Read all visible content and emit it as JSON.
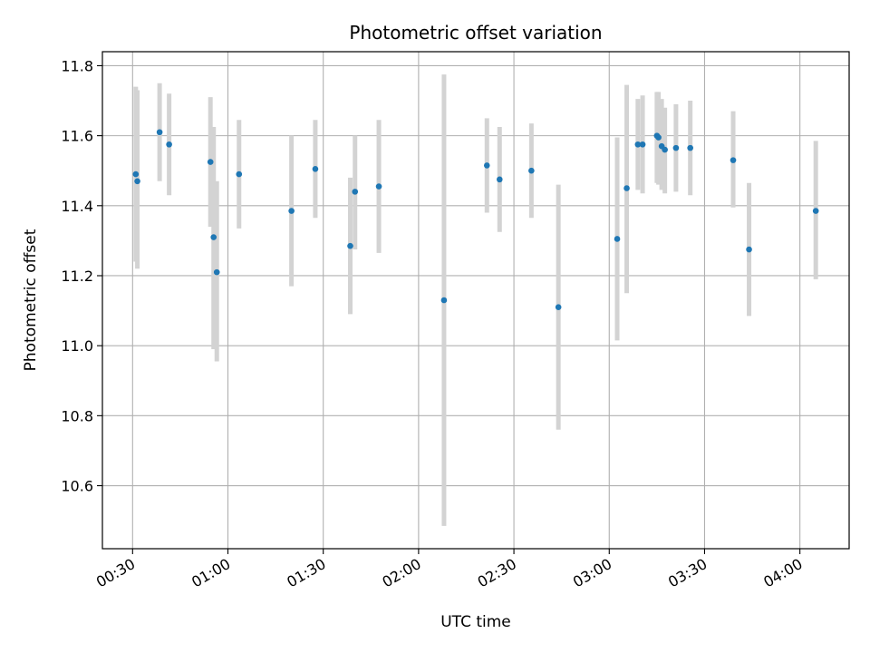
{
  "chart_data": {
    "type": "scatter",
    "title": "Photometric offset variation",
    "xlabel": "UTC time",
    "ylabel": "Photometric offset",
    "x_unit": "UTC time (HH:MM)",
    "xlim": [
      "00:20:30",
      "04:15:30"
    ],
    "ylim": [
      10.42,
      11.84
    ],
    "x_ticks": [
      "00:30",
      "01:00",
      "01:30",
      "02:00",
      "02:30",
      "03:00",
      "03:30",
      "04:00"
    ],
    "y_ticks": [
      10.6,
      10.8,
      11.0,
      11.2,
      11.4,
      11.6,
      11.8
    ],
    "y_tick_labels": [
      "10.6",
      "10.8",
      "11.0",
      "11.2",
      "11.4",
      "11.6",
      "11.8"
    ],
    "grid": true,
    "point_color": "#1f77b4",
    "errorbar_color": "#d3d3d3",
    "points": [
      {
        "x": "00:31:00",
        "y": 11.49,
        "ymin": 11.24,
        "ymax": 11.74
      },
      {
        "x": "00:31:30",
        "y": 11.47,
        "ymin": 11.22,
        "ymax": 11.73
      },
      {
        "x": "00:38:30",
        "y": 11.61,
        "ymin": 11.47,
        "ymax": 11.75
      },
      {
        "x": "00:41:30",
        "y": 11.575,
        "ymin": 11.43,
        "ymax": 11.72
      },
      {
        "x": "00:54:30",
        "y": 11.525,
        "ymin": 11.34,
        "ymax": 11.71
      },
      {
        "x": "00:55:30",
        "y": 11.31,
        "ymin": 10.99,
        "ymax": 11.625
      },
      {
        "x": "00:56:30",
        "y": 11.21,
        "ymin": 10.955,
        "ymax": 11.47
      },
      {
        "x": "01:03:30",
        "y": 11.49,
        "ymin": 11.335,
        "ymax": 11.645
      },
      {
        "x": "01:20:00",
        "y": 11.385,
        "ymin": 11.17,
        "ymax": 11.6
      },
      {
        "x": "01:27:30",
        "y": 11.505,
        "ymin": 11.365,
        "ymax": 11.645
      },
      {
        "x": "01:38:30",
        "y": 11.285,
        "ymin": 11.09,
        "ymax": 11.48
      },
      {
        "x": "01:40:00",
        "y": 11.44,
        "ymin": 11.275,
        "ymax": 11.6
      },
      {
        "x": "01:47:30",
        "y": 11.455,
        "ymin": 11.265,
        "ymax": 11.645
      },
      {
        "x": "02:08:00",
        "y": 11.13,
        "ymin": 10.485,
        "ymax": 11.775
      },
      {
        "x": "02:21:30",
        "y": 11.515,
        "ymin": 11.38,
        "ymax": 11.65
      },
      {
        "x": "02:25:30",
        "y": 11.475,
        "ymin": 11.325,
        "ymax": 11.625
      },
      {
        "x": "02:35:30",
        "y": 11.5,
        "ymin": 11.365,
        "ymax": 11.635
      },
      {
        "x": "02:44:00",
        "y": 11.11,
        "ymin": 10.76,
        "ymax": 11.46
      },
      {
        "x": "03:02:30",
        "y": 11.305,
        "ymin": 11.015,
        "ymax": 11.595
      },
      {
        "x": "03:05:30",
        "y": 11.45,
        "ymin": 11.15,
        "ymax": 11.745
      },
      {
        "x": "03:09:00",
        "y": 11.575,
        "ymin": 11.445,
        "ymax": 11.705
      },
      {
        "x": "03:10:30",
        "y": 11.575,
        "ymin": 11.435,
        "ymax": 11.715
      },
      {
        "x": "03:15:00",
        "y": 11.6,
        "ymin": 11.465,
        "ymax": 11.725
      },
      {
        "x": "03:15:30",
        "y": 11.595,
        "ymin": 11.46,
        "ymax": 11.725
      },
      {
        "x": "03:16:30",
        "y": 11.57,
        "ymin": 11.445,
        "ymax": 11.705
      },
      {
        "x": "03:17:30",
        "y": 11.56,
        "ymin": 11.435,
        "ymax": 11.68
      },
      {
        "x": "03:21:00",
        "y": 11.565,
        "ymin": 11.44,
        "ymax": 11.69
      },
      {
        "x": "03:25:30",
        "y": 11.565,
        "ymin": 11.43,
        "ymax": 11.7
      },
      {
        "x": "03:39:00",
        "y": 11.53,
        "ymin": 11.395,
        "ymax": 11.67
      },
      {
        "x": "03:44:00",
        "y": 11.275,
        "ymin": 11.085,
        "ymax": 11.465
      },
      {
        "x": "04:05:00",
        "y": 11.385,
        "ymin": 11.19,
        "ymax": 11.585
      }
    ]
  }
}
